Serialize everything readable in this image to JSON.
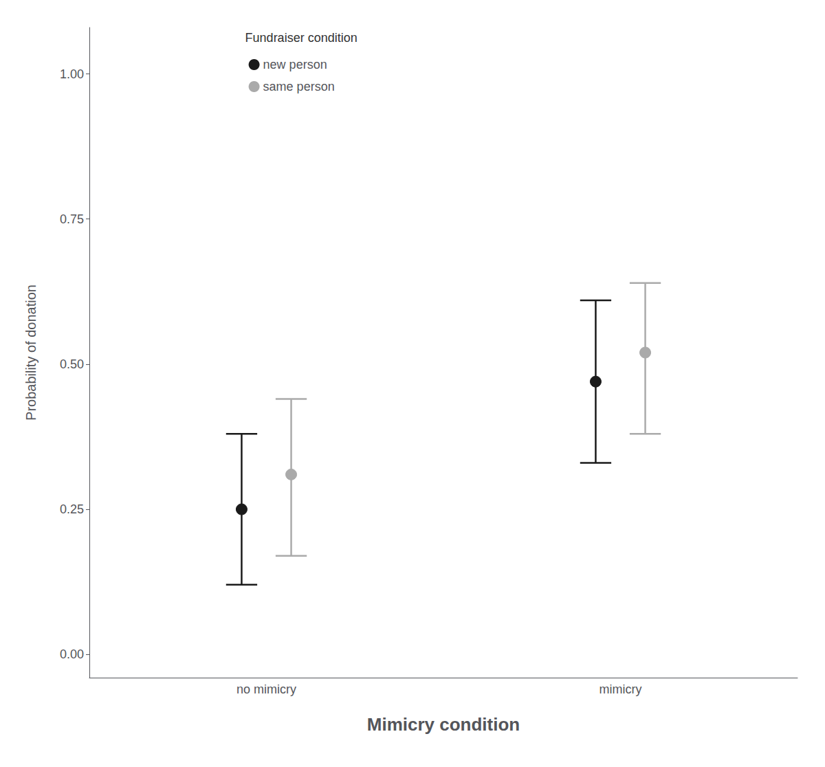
{
  "chart_data": {
    "type": "errorbar",
    "xlabel": "Mimicry condition",
    "ylabel": "Probability of donation",
    "legend_title": "Fundraiser condition",
    "legend": "upper left",
    "grid": false,
    "categories": [
      "no mimicry",
      "mimicry"
    ],
    "ylim": [
      -0.04,
      1.08
    ],
    "yticks": [
      {
        "value": 0.0,
        "label": "0.00"
      },
      {
        "value": 0.25,
        "label": "0.25"
      },
      {
        "value": 0.5,
        "label": "0.50"
      },
      {
        "value": 0.75,
        "label": "0.75"
      },
      {
        "value": 1.0,
        "label": "1.00"
      }
    ],
    "series": [
      {
        "name": "new person",
        "color": "#1a1a1a",
        "values": [
          0.25,
          0.47
        ],
        "lower": [
          0.12,
          0.33
        ],
        "upper": [
          0.38,
          0.61
        ]
      },
      {
        "name": "same person",
        "color": "#aaaaaa",
        "values": [
          0.31,
          0.52
        ],
        "lower": [
          0.17,
          0.38
        ],
        "upper": [
          0.44,
          0.64
        ]
      }
    ]
  }
}
